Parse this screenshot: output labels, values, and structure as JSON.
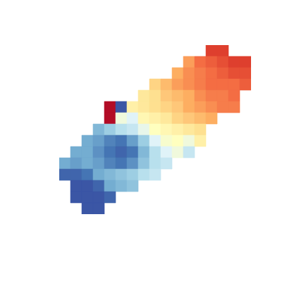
{
  "chart_data": {
    "type": "heatmap",
    "xlim": [
      0,
      17
    ],
    "ylim": [
      0,
      15
    ],
    "zlim": [
      -1,
      1
    ],
    "tick_labels": false,
    "z": [
      [
        null,
        null,
        null,
        null,
        null,
        null,
        null,
        null,
        null,
        null,
        null,
        null,
        null,
        0.75,
        0.75,
        null,
        null
      ],
      [
        null,
        null,
        null,
        null,
        null,
        null,
        null,
        null,
        null,
        null,
        null,
        0.45,
        0.6,
        0.65,
        0.7,
        0.75,
        0.75
      ],
      [
        null,
        null,
        null,
        null,
        null,
        null,
        null,
        null,
        null,
        null,
        0.4,
        0.5,
        0.55,
        0.6,
        0.65,
        0.7,
        0.7
      ],
      [
        null,
        null,
        null,
        null,
        null,
        null,
        null,
        null,
        0.25,
        0.35,
        0.45,
        0.5,
        0.55,
        0.6,
        0.6,
        0.6,
        0.65
      ],
      [
        null,
        null,
        null,
        null,
        null,
        null,
        null,
        0.15,
        0.2,
        0.3,
        0.35,
        0.4,
        0.5,
        0.55,
        0.55,
        0.6,
        null
      ],
      [
        null,
        null,
        null,
        null,
        0.95,
        -0.9,
        0.1,
        0.15,
        0.2,
        0.25,
        0.3,
        0.4,
        0.45,
        0.5,
        0.55,
        0.55,
        null
      ],
      [
        null,
        null,
        null,
        null,
        0.95,
        -0.1,
        -0.2,
        0.05,
        0.1,
        0.15,
        0.25,
        0.3,
        0.35,
        0.4,
        null,
        null,
        null
      ],
      [
        null,
        null,
        null,
        -0.55,
        -0.45,
        -0.35,
        -0.3,
        -0.15,
        0,
        0.05,
        0.1,
        0.15,
        0.2,
        null,
        null,
        null,
        null
      ],
      [
        null,
        null,
        -0.6,
        -0.65,
        -0.75,
        -0.8,
        -0.65,
        -0.45,
        -0.2,
        -0.05,
        0,
        -0.1,
        0.1,
        null,
        null,
        null,
        null
      ],
      [
        null,
        -0.6,
        -0.6,
        -0.7,
        -0.8,
        -0.85,
        -0.8,
        -0.55,
        -0.35,
        -0.2,
        -0.1,
        -0.3,
        null,
        null,
        null,
        null,
        null
      ],
      [
        -0.6,
        -0.65,
        -0.6,
        -0.65,
        -0.75,
        -0.8,
        -0.7,
        -0.5,
        -0.35,
        -0.3,
        null,
        null,
        null,
        null,
        null,
        null,
        null
      ],
      [
        -0.85,
        -0.85,
        -0.8,
        -0.6,
        -0.55,
        -0.5,
        -0.45,
        -0.35,
        -0.3,
        null,
        null,
        null,
        null,
        null,
        null,
        null,
        null
      ],
      [
        null,
        -0.9,
        -0.9,
        -0.85,
        -0.6,
        -0.55,
        -0.5,
        null,
        null,
        null,
        null,
        null,
        null,
        null,
        null,
        null,
        null
      ],
      [
        null,
        -0.9,
        -0.9,
        -0.9,
        -0.85,
        null,
        null,
        null,
        null,
        null,
        null,
        null,
        null,
        null,
        null,
        null,
        null
      ],
      [
        null,
        null,
        -0.9,
        -0.9,
        null,
        null,
        null,
        null,
        null,
        null,
        null,
        null,
        null,
        null,
        null,
        null,
        null
      ]
    ]
  }
}
